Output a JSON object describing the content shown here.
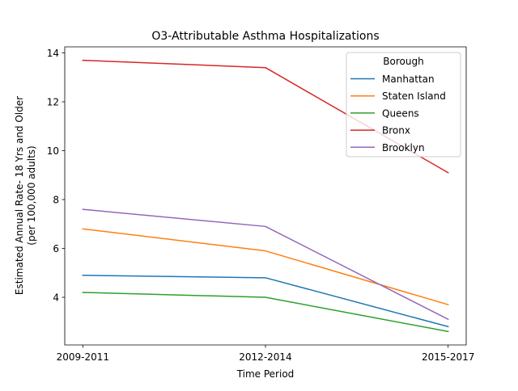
{
  "chart_data": {
    "type": "line",
    "title": "O3-Attributable Asthma Hospitalizations",
    "xlabel": "Time Period",
    "ylabel_line1": "Estimated Annual Rate- 18 Yrs and Older",
    "ylabel_line2": "(per 100,000 adults)",
    "categories": [
      "2009-2011",
      "2012-2014",
      "2015-2017"
    ],
    "yticks": [
      4,
      6,
      8,
      10,
      12,
      14
    ],
    "ylim": [
      2.05,
      14.25
    ],
    "grid": false,
    "legend": {
      "title": "Borough",
      "placement": "top-right"
    },
    "series": [
      {
        "name": "Manhattan",
        "color": "#1f77b4",
        "values": [
          4.9,
          4.8,
          2.8
        ]
      },
      {
        "name": "Staten Island",
        "color": "#ff7f0e",
        "values": [
          6.8,
          5.9,
          3.7
        ]
      },
      {
        "name": "Queens",
        "color": "#2ca02c",
        "values": [
          4.2,
          4.0,
          2.6
        ]
      },
      {
        "name": "Bronx",
        "color": "#d62728",
        "values": [
          13.7,
          13.4,
          9.1
        ]
      },
      {
        "name": "Brooklyn",
        "color": "#9467bd",
        "values": [
          7.6,
          6.9,
          3.1
        ]
      }
    ]
  }
}
